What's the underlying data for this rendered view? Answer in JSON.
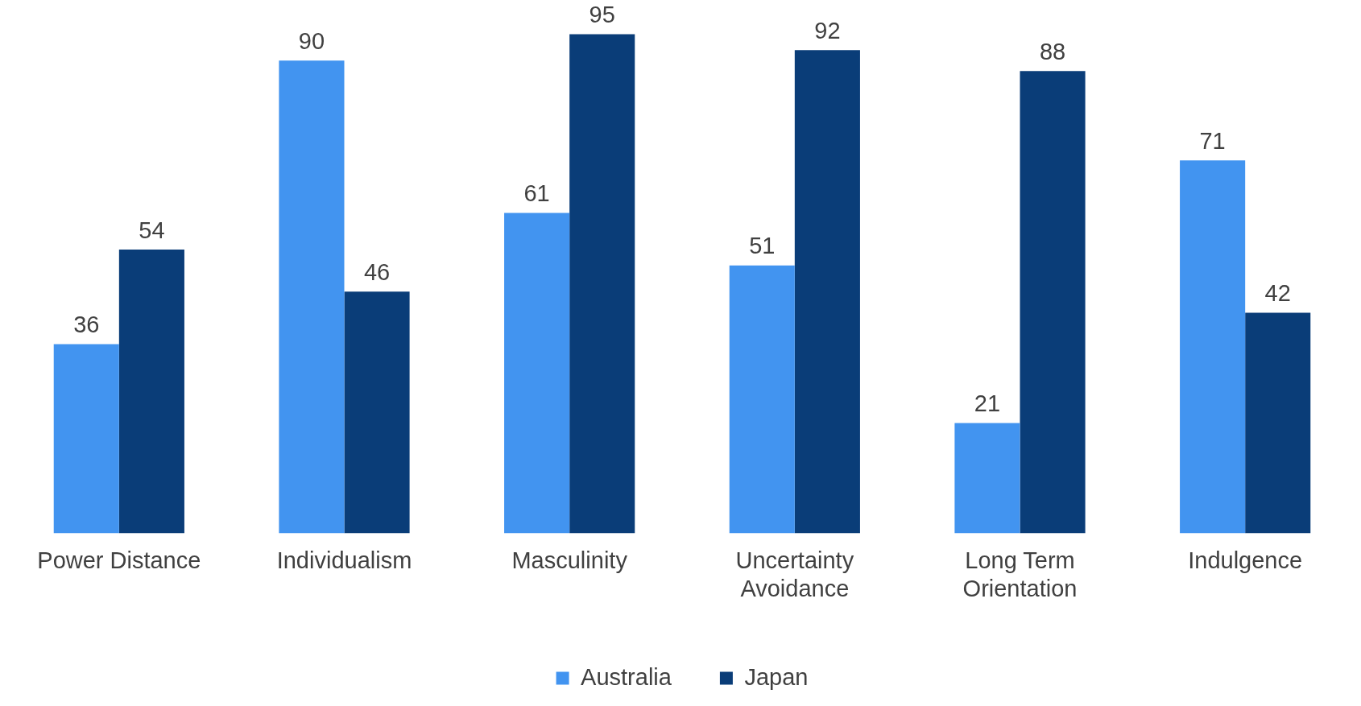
{
  "chart_data": {
    "type": "bar",
    "categories": [
      "Power Distance",
      "Individualism",
      "Masculinity",
      "Uncertainty Avoidance",
      "Long Term Orientation",
      "Indulgence"
    ],
    "series": [
      {
        "name": "Australia",
        "color": "#4294f0",
        "values": [
          36,
          90,
          61,
          51,
          21,
          71
        ]
      },
      {
        "name": "Japan",
        "color": "#0a3d78",
        "values": [
          54,
          46,
          95,
          92,
          88,
          42
        ]
      }
    ],
    "data_labels": true,
    "legend": "bottom",
    "grid": false,
    "tick_labels": "x"
  }
}
